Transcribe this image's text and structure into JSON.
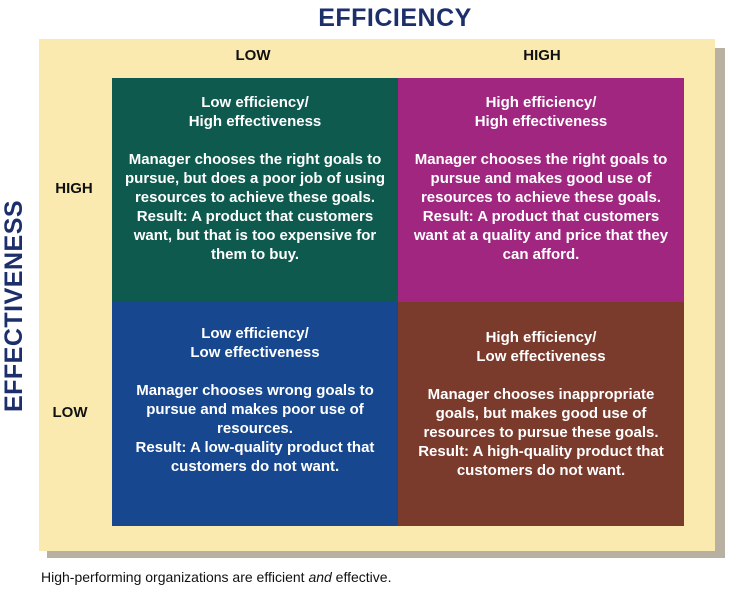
{
  "title_top": "EFFICIENCY",
  "title_side": "EFFECTIVENESS",
  "columns": [
    "LOW",
    "HIGH"
  ],
  "rows": [
    "HIGH",
    "LOW"
  ],
  "colors": {
    "low_eff_high_effect": "#0f5a4e",
    "high_eff_high_effect": "#a02680",
    "low_eff_low_effect": "#17488f",
    "high_eff_low_effect": "#7a3a2c",
    "frame": "#fbeab0",
    "title": "#1d2f6b"
  },
  "cells": {
    "top_left": {
      "heading": "Low efficiency/\nHigh effectiveness",
      "text": "Manager chooses the right goals to pursue, but does a poor job of using resources to achieve these goals.\nResult: A product that customers want, but that is too expensive for them to buy."
    },
    "top_right": {
      "heading": "High efficiency/\nHigh effectiveness",
      "text": "Manager chooses the right goals to pursue and makes good use of resources to achieve these goals.\nResult: A product that customers want at a quality and price that they can afford."
    },
    "bottom_left": {
      "heading": "Low efficiency/\nLow effectiveness",
      "text": "Manager chooses wrong goals to pursue and makes poor use of resources.\nResult: A low-quality product that customers do not want."
    },
    "bottom_right": {
      "heading": "High efficiency/\nLow effectiveness",
      "text": "Manager chooses inappropriate goals, but makes good use of resources to pursue these goals.\nResult: A high-quality product that customers do not want."
    }
  },
  "caption": {
    "before": "High-performing organizations are efficient ",
    "emph": "and",
    "after": " effective."
  }
}
